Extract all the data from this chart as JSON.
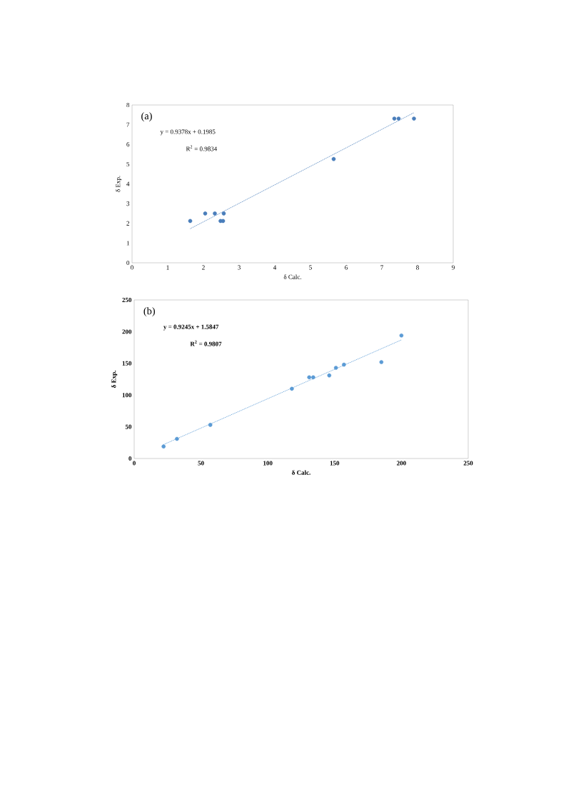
{
  "chart_data": [
    {
      "type": "scatter",
      "xlabel": "δ Calc.",
      "ylabel": "δ Exp.",
      "xlim": [
        0,
        9
      ],
      "ylim": [
        0,
        8
      ],
      "xticks": [
        0,
        1,
        2,
        3,
        4,
        5,
        6,
        7,
        8,
        9
      ],
      "yticks": [
        0,
        1,
        2,
        3,
        4,
        5,
        6,
        7,
        8
      ],
      "annotations": [
        "(a)",
        "y = 0.9378x  + 0.1985",
        "R$^{2}$ = 0.9834"
      ],
      "series": [
        {
          "color": "#4a7ebb",
          "marker": "circle",
          "x": [
            1.63,
            2.05,
            2.32,
            2.57,
            2.48,
            2.55,
            5.65,
            7.35,
            7.47,
            7.9
          ],
          "values": [
            2.12,
            2.5,
            2.5,
            2.5,
            2.12,
            2.12,
            5.26,
            7.31,
            7.31,
            7.31
          ]
        },
        {
          "type": "line",
          "color": "#4a7ebb",
          "line_style": "dotted",
          "x": [
            1.63,
            7.9
          ],
          "values": [
            1.73,
            7.61
          ]
        }
      ]
    },
    {
      "type": "scatter",
      "xlabel": "δ Calc.",
      "ylabel": "δ Exp.",
      "xlim": [
        0,
        250
      ],
      "ylim": [
        0,
        250
      ],
      "xticks": [
        0,
        50,
        100,
        150,
        200,
        250
      ],
      "yticks": [
        0,
        50,
        100,
        150,
        200,
        250
      ],
      "annotations": [
        "(b)",
        "y = 0.9245x + 1.5847",
        "R$^{2}$ = 0.9807"
      ],
      "series": [
        {
          "color": "#5b9bd5",
          "marker": "circle",
          "x": [
            22,
            32,
            57,
            118,
            131,
            134,
            146,
            151,
            157,
            185,
            200
          ],
          "values": [
            19,
            31,
            53,
            110,
            128,
            128,
            131,
            143,
            148,
            152,
            194
          ]
        },
        {
          "type": "line",
          "color": "#5b9bd5",
          "line_style": "dotted",
          "x": [
            22,
            200
          ],
          "values": [
            22,
            187
          ]
        }
      ]
    }
  ]
}
